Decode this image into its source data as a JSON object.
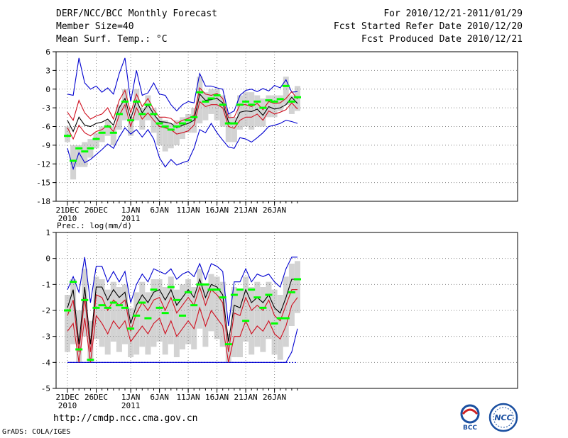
{
  "header": {
    "title": "DERF/NCC/BCC Monthly Forecast",
    "member_size": "Member Size=40",
    "variable": "Mean Surf. Temp.: °C",
    "valid_period": "For 2010/12/21-2011/01/29",
    "started": "Fcst Started Refer Date 2010/12/20",
    "produced": "Fcst Produced Date 2010/12/21"
  },
  "footer": {
    "url": "http://cmdp.ncc.cma.gov.cn",
    "credit": "GrADS: COLA/IGES",
    "logo_bcc": "BCC",
    "logo_ncc": "NCC"
  },
  "colors": {
    "box": "#d3d3d3",
    "median": "#00ff00",
    "mean": "#000000",
    "spread": "#d01020",
    "extreme": "#0000d0",
    "grid": "#888888"
  },
  "chart_data": [
    {
      "type": "box-plot-ensemble",
      "title": "Mean Surf. Temp.: °C",
      "ylim": [
        -18,
        6
      ],
      "yticks": [
        6,
        3,
        0,
        -3,
        -6,
        -9,
        -12,
        -15,
        -18
      ],
      "xlabel_ticks": [
        {
          "day": 0,
          "label": "21DEC",
          "sub": "2010"
        },
        {
          "day": 5,
          "label": "26DEC",
          "sub": ""
        },
        {
          "day": 11,
          "label": "1JAN",
          "sub": "2011"
        },
        {
          "day": 16,
          "label": "6JAN",
          "sub": ""
        },
        {
          "day": 21,
          "label": "11JAN",
          "sub": ""
        },
        {
          "day": 26,
          "label": "16JAN",
          "sub": ""
        },
        {
          "day": 31,
          "label": "21JAN",
          "sub": ""
        },
        {
          "day": 36,
          "label": "26JAN",
          "sub": ""
        }
      ],
      "days": 40,
      "max": [
        -0.8,
        -1,
        5,
        1,
        0,
        0.5,
        -0.5,
        0.2,
        -0.8,
        2.5,
        5,
        -2,
        3,
        -1,
        -0.6,
        1,
        -0.8,
        -1,
        -2.5,
        -3.5,
        -2.5,
        -2,
        -2.2,
        2.5,
        0.5,
        0.5,
        0.2,
        0,
        -4,
        -3.5,
        -1,
        -0.2,
        0,
        -0.4,
        0.1,
        -0.3,
        0.6,
        0.2,
        1.5,
        -0.5,
        -0.4
      ],
      "mean": [
        -5,
        -6.8,
        -4.5,
        -5.8,
        -6,
        -5.5,
        -5.3,
        -4.8,
        -5.8,
        -3,
        -1.5,
        -4.8,
        -1.8,
        -3.8,
        -2.5,
        -4,
        -5.2,
        -5.3,
        -5.5,
        -6.2,
        -5.8,
        -5.5,
        -5,
        -0.8,
        -1.8,
        -1.7,
        -1.5,
        -2.2,
        -5.3,
        -5.6,
        -3.7,
        -3.5,
        -3.6,
        -3.2,
        -4.2,
        -2.8,
        -3.2,
        -3.0,
        -2.5,
        -1.3,
        -2.3
      ],
      "upper": [
        -3.7,
        -5,
        -1.8,
        -3.8,
        -4.8,
        -4.3,
        -4,
        -3,
        -4.8,
        -1.8,
        -0.2,
        -3.8,
        -0.8,
        -2.8,
        -1.5,
        -3.3,
        -4.5,
        -4.5,
        -4.7,
        -5.5,
        -5,
        -4.7,
        -4.2,
        0.2,
        -0.8,
        -1,
        -0.7,
        -1.5,
        -4.6,
        -4.5,
        -2.5,
        -2.5,
        -2.8,
        -2.3,
        -3.3,
        -2,
        -2.3,
        -2.2,
        -1.5,
        -0.4,
        -1.6
      ],
      "lower": [
        -6.2,
        -8,
        -5.8,
        -7,
        -7.5,
        -6.8,
        -6.5,
        -5.8,
        -6.8,
        -4.2,
        -2.5,
        -6,
        -3,
        -4.8,
        -3.8,
        -5,
        -6,
        -6.2,
        -6.5,
        -7.2,
        -7,
        -6.7,
        -5.8,
        -2,
        -2.8,
        -2.5,
        -2.5,
        -3,
        -6,
        -6.3,
        -5,
        -4.5,
        -4.5,
        -4,
        -5,
        -3.5,
        -4,
        -3.7,
        -3.3,
        -2.2,
        -3.2
      ],
      "min": [
        -9.5,
        -12.8,
        -10.2,
        -11.8,
        -11.3,
        -10.5,
        -9.7,
        -8.8,
        -9.5,
        -7.7,
        -6.2,
        -7.2,
        -6.5,
        -7.7,
        -6.5,
        -8,
        -11,
        -12.5,
        -11.3,
        -12.2,
        -11.8,
        -11.5,
        -9.5,
        -6.5,
        -7,
        -5.5,
        -7,
        -8.2,
        -9.3,
        -9.5,
        -7.8,
        -8,
        -8.5,
        -7.8,
        -7,
        -6,
        -5.8,
        -5.5,
        -5,
        -5.2,
        -5.5
      ],
      "median": [
        -7.5,
        -11.5,
        -9.5,
        -10,
        -9.5,
        -8,
        -7,
        -6,
        -7,
        -4,
        -2,
        -5,
        -2,
        -4,
        -2.5,
        -4,
        -5.5,
        -6,
        -6.5,
        -6,
        -5.5,
        -5,
        -4.5,
        -0.5,
        -2,
        -1.5,
        -1,
        -2.5,
        -5.5,
        -5.5,
        -2.5,
        -2,
        -2.5,
        -2,
        -3,
        -1.8,
        -2,
        -1.6,
        0.5,
        -2,
        -1.3
      ],
      "box_hi": [
        -6,
        -9,
        -9,
        -8.5,
        -8,
        -7,
        -6,
        -5,
        -6,
        -2.5,
        0,
        -4.5,
        0,
        -3,
        -1,
        -3,
        -4.5,
        -5,
        -5.5,
        -5,
        -4.5,
        -4,
        -3,
        2,
        -0.5,
        0,
        0,
        -1,
        -4,
        -4.5,
        -1,
        -0.5,
        -0.5,
        -1,
        -1.5,
        -1,
        -1,
        -1,
        2,
        -1,
        0.5
      ],
      "box_lo": [
        -8.5,
        -14.5,
        -12.5,
        -12.5,
        -11,
        -9.5,
        -8.5,
        -7.5,
        -9,
        -6.5,
        -5,
        -7.5,
        -5,
        -6.5,
        -5,
        -7,
        -9,
        -10,
        -9.5,
        -9,
        -8,
        -7,
        -7,
        -5.5,
        -5,
        -4,
        -5,
        -6,
        -8.5,
        -8.5,
        -6.5,
        -6,
        -6.5,
        -6,
        -6,
        -4.5,
        -4.5,
        -3.5,
        -2.5,
        -4,
        -3.5
      ]
    },
    {
      "type": "box-plot-ensemble",
      "title": "Prec.: log(mm/d)",
      "ylim": [
        -5,
        1
      ],
      "yticks": [
        1,
        0,
        -1,
        -2,
        -3,
        -4,
        -5
      ],
      "xlabel_ticks": [
        {
          "day": 0,
          "label": "21DEC",
          "sub": "2010"
        },
        {
          "day": 5,
          "label": "26DEC",
          "sub": ""
        },
        {
          "day": 11,
          "label": "1JAN",
          "sub": "2011"
        },
        {
          "day": 16,
          "label": "6JAN",
          "sub": ""
        },
        {
          "day": 21,
          "label": "11JAN",
          "sub": ""
        },
        {
          "day": 26,
          "label": "16JAN",
          "sub": ""
        },
        {
          "day": 31,
          "label": "21JAN",
          "sub": ""
        },
        {
          "day": 36,
          "label": "26JAN",
          "sub": ""
        }
      ],
      "days": 40,
      "floor": -4,
      "max": [
        -1.2,
        -0.7,
        -1.3,
        0.05,
        -1.7,
        -0.3,
        -0.3,
        -0.9,
        -0.5,
        -0.9,
        -0.5,
        -1.7,
        -1,
        -0.6,
        -0.9,
        -0.4,
        -0.5,
        -0.6,
        -0.4,
        -0.8,
        -0.6,
        -0.5,
        -0.7,
        -0.2,
        -0.8,
        -0.2,
        -0.3,
        -0.5,
        -2.6,
        -0.9,
        -0.9,
        -0.4,
        -0.9,
        -0.6,
        -0.7,
        -0.6,
        -0.9,
        -1.1,
        -0.4,
        0.05,
        0.05
      ],
      "mean": [
        -1.9,
        -1.2,
        -3.3,
        -1.1,
        -3.3,
        -1.1,
        -1.1,
        -1.6,
        -1.2,
        -1.5,
        -1.3,
        -2.5,
        -1.8,
        -1.4,
        -1.7,
        -1.3,
        -1.2,
        -1.6,
        -1.2,
        -1.8,
        -1.5,
        -1.2,
        -1.5,
        -0.8,
        -1.5,
        -1.0,
        -1.1,
        -1.4,
        -3.2,
        -1.8,
        -1.9,
        -1.2,
        -1.7,
        -1.5,
        -1.7,
        -1.4,
        -1.9,
        -2.1,
        -1.5,
        -0.8,
        -0.8
      ],
      "upper": [
        -2.2,
        -1.6,
        -3.6,
        -1.5,
        -3.6,
        -1.4,
        -1.5,
        -2.0,
        -1.6,
        -1.8,
        -1.6,
        -2.8,
        -2.1,
        -1.7,
        -2.0,
        -1.6,
        -1.5,
        -2.0,
        -1.5,
        -2.1,
        -1.8,
        -1.5,
        -1.8,
        -1.1,
        -1.8,
        -1.2,
        -1.4,
        -1.7,
        -3.6,
        -2.1,
        -2.2,
        -1.5,
        -2.0,
        -1.8,
        -2.0,
        -1.6,
        -2.2,
        -2.4,
        -1.8,
        -1.2,
        -1.2
      ],
      "lower": [
        -2.8,
        -2.5,
        -4,
        -2.3,
        -4,
        -2.2,
        -2.5,
        -2.9,
        -2.4,
        -2.7,
        -2.4,
        -3.2,
        -2.9,
        -2.6,
        -2.9,
        -2.5,
        -2.3,
        -2.9,
        -2.4,
        -3.0,
        -2.7,
        -2.4,
        -2.7,
        -1.9,
        -2.6,
        -2.0,
        -2.3,
        -2.6,
        -4,
        -3.0,
        -3.0,
        -2.4,
        -2.9,
        -2.6,
        -2.8,
        -2.4,
        -2.9,
        -3.1,
        -2.6,
        -1.8,
        -1.5
      ],
      "min": [
        -4,
        -4,
        -4,
        -4,
        -4,
        -4,
        -4,
        -4,
        -4,
        -4,
        -4,
        -4,
        -4,
        -4,
        -4,
        -4,
        -4,
        -4,
        -4,
        -4,
        -4,
        -4,
        -4,
        -4,
        -4,
        -4,
        -4,
        -4,
        -4,
        -4,
        -4,
        -4,
        -4,
        -4,
        -4,
        -4,
        -4,
        -4,
        -4,
        -3.6,
        -2.7
      ],
      "median": [
        -2.0,
        -0.9,
        -3.5,
        -1.6,
        -3.9,
        -1.9,
        -1.8,
        -1.9,
        -1.7,
        -1.8,
        -1.9,
        -2.7,
        -2.2,
        -1.7,
        -2.3,
        -1.2,
        -1.9,
        -2.1,
        -1.1,
        -1.6,
        -2.2,
        -1.3,
        -1.8,
        -1.0,
        -1.0,
        -1.2,
        -1.2,
        -1.5,
        -3.3,
        -1.4,
        -1.2,
        -2.4,
        -1.2,
        -1.5,
        -1.9,
        -1.4,
        -2.5,
        -2.3,
        -2.3,
        -1.3,
        -0.8
      ],
      "box_hi": [
        -1.4,
        -0.8,
        -2.0,
        -0.4,
        -2.4,
        -0.7,
        -0.8,
        -1.2,
        -0.9,
        -1.1,
        -1.0,
        -1.9,
        -1.3,
        -0.9,
        -1.3,
        -0.8,
        -0.8,
        -1.1,
        -0.7,
        -1.2,
        -1.0,
        -0.8,
        -1.1,
        -0.4,
        -1.0,
        -0.6,
        -0.7,
        -0.9,
        -2.9,
        -1.1,
        -1.2,
        -0.7,
        -1.1,
        -0.9,
        -1.1,
        -0.9,
        -1.2,
        -1.4,
        -0.7,
        -0.2,
        -0.1
      ],
      "box_lo": [
        -3.6,
        -3.3,
        -4,
        -3.0,
        -4,
        -3.1,
        -3.4,
        -3.7,
        -3.2,
        -3.6,
        -3.3,
        -3.8,
        -3.7,
        -3.4,
        -3.7,
        -3.4,
        -3.2,
        -3.7,
        -3.3,
        -3.8,
        -3.5,
        -3.3,
        -3.5,
        -2.7,
        -3.4,
        -2.8,
        -3.1,
        -3.4,
        -4,
        -3.8,
        -3.8,
        -3.2,
        -3.7,
        -3.4,
        -3.6,
        -3.1,
        -3.7,
        -3.9,
        -3.4,
        -2.6,
        -2.1
      ]
    }
  ]
}
